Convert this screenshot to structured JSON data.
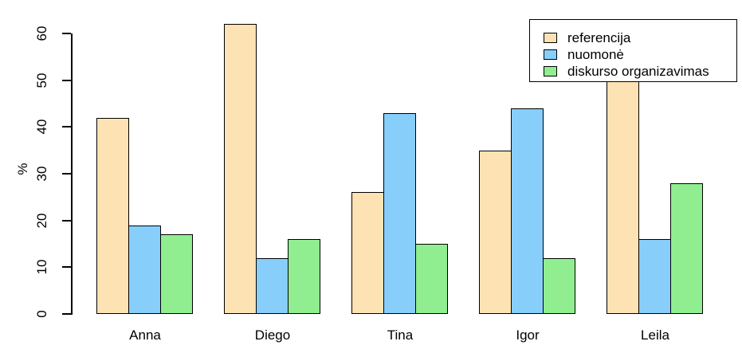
{
  "background_color": "#FFFFFF",
  "chart_data": {
    "type": "bar",
    "title": "",
    "xlabel": "",
    "ylabel": "%",
    "ylim": [
      0,
      60
    ],
    "yticks": [
      0,
      10,
      20,
      30,
      40,
      50,
      60
    ],
    "categories": [
      "Anna",
      "Diego",
      "Tina",
      "Igor",
      "Leila"
    ],
    "series": [
      {
        "name": "referencija",
        "color": "#FDE3B3",
        "values": [
          42,
          62,
          26,
          35,
          50
        ]
      },
      {
        "name": "nuomonė",
        "color": "#87CEFA",
        "values": [
          19,
          12,
          43,
          44,
          16
        ]
      },
      {
        "name": "diskurso organizavimas",
        "color": "#90EE90",
        "values": [
          17,
          16,
          15,
          12,
          28
        ]
      }
    ],
    "grid": false,
    "legend_position": "top-right",
    "bar_border_color": "#000000",
    "axis_color": "#000000"
  }
}
